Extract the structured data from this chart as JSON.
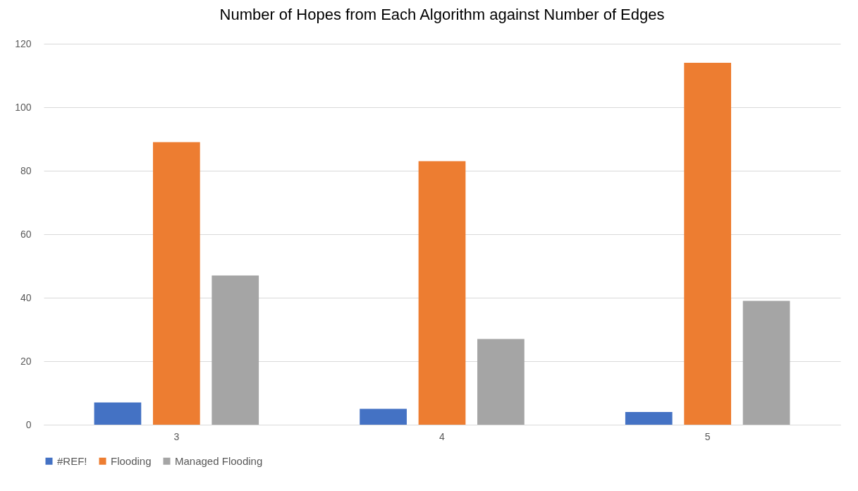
{
  "chart_data": {
    "type": "bar",
    "title": "Number of Hopes from Each Algorithm against Number of Edges",
    "categories": [
      "3",
      "4",
      "5"
    ],
    "series": [
      {
        "name": "#REF!",
        "color": "#4472c4",
        "values": [
          7,
          5,
          4
        ]
      },
      {
        "name": "Flooding",
        "color": "#ed7d31",
        "values": [
          89,
          83,
          114
        ]
      },
      {
        "name": "Managed Flooding",
        "color": "#a5a5a5",
        "values": [
          47,
          27,
          39
        ]
      }
    ],
    "ylim": [
      0,
      120
    ],
    "yticks": [
      0,
      20,
      40,
      60,
      80,
      100,
      120
    ],
    "grid": "y",
    "legend": "bottom"
  }
}
